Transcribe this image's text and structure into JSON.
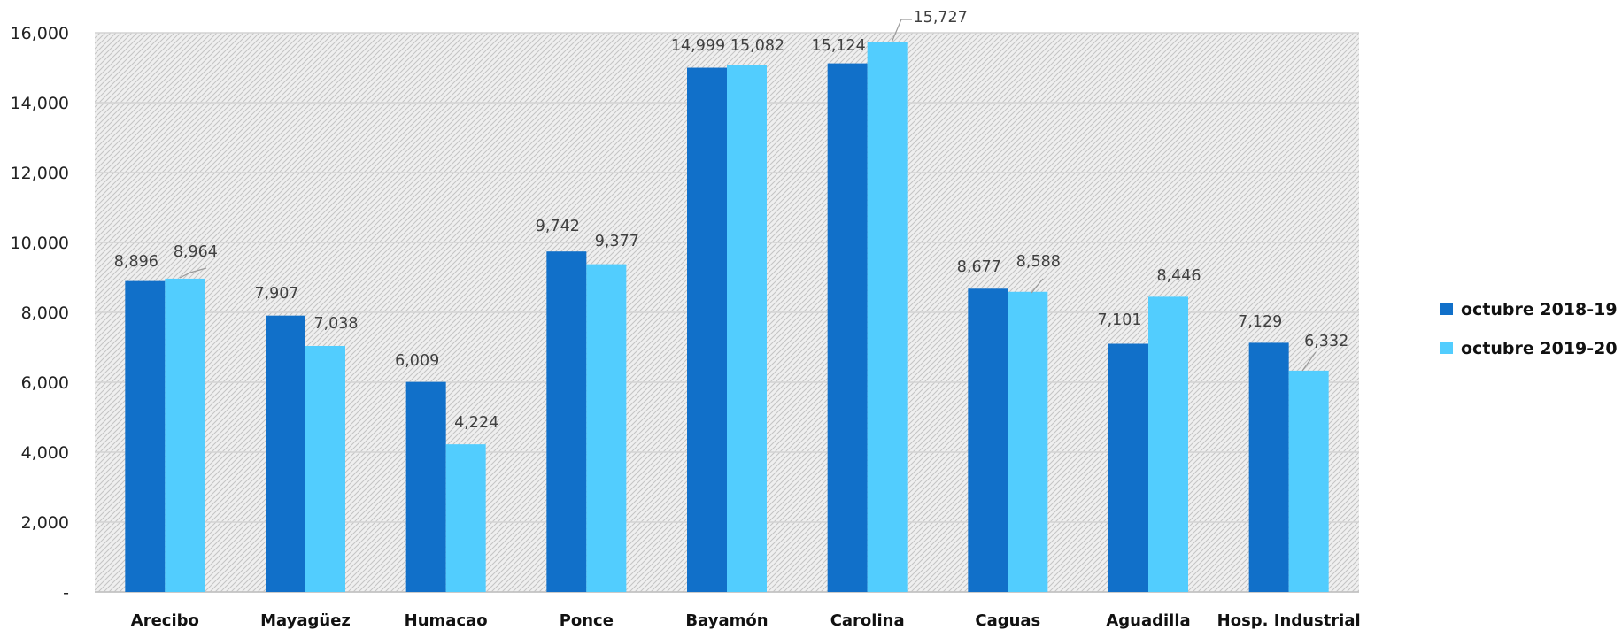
{
  "chart_data": {
    "type": "bar",
    "title": "",
    "xlabel": "",
    "ylabel": "",
    "categories": [
      "Arecibo",
      "Mayagüez",
      "Humacao",
      "Ponce",
      "Bayamón",
      "Carolina",
      "Caguas",
      "Aguadilla",
      "Hosp. Industrial"
    ],
    "series": [
      {
        "name": "octubre 2018-19",
        "color": "#1170C9",
        "values": [
          8896,
          7907,
          6009,
          9742,
          14999,
          15124,
          8677,
          7101,
          7129
        ],
        "labels": [
          "8,896",
          "7,907",
          "6,009",
          "9,742",
          "14,999",
          "15,124",
          "8,677",
          "7,101",
          "7,129"
        ]
      },
      {
        "name": "octubre 2019-20",
        "color": "#52CDFE",
        "values": [
          8964,
          7038,
          4224,
          9377,
          15082,
          15727,
          8588,
          8446,
          6332
        ],
        "labels": [
          "8,964",
          "7,038",
          "4,224",
          "9,377",
          "15,082",
          "15,727",
          "8,588",
          "8,446",
          "6,332"
        ]
      }
    ],
    "ylim": [
      0,
      16000
    ],
    "yticks": [
      0,
      2000,
      4000,
      6000,
      8000,
      10000,
      12000,
      14000,
      16000
    ],
    "ytick_labels": [
      "-",
      "2,000",
      "4,000",
      "6,000",
      "8,000",
      "10,000",
      "12,000",
      "14,000",
      "16,000"
    ],
    "grid": true,
    "legend_position": "right"
  }
}
